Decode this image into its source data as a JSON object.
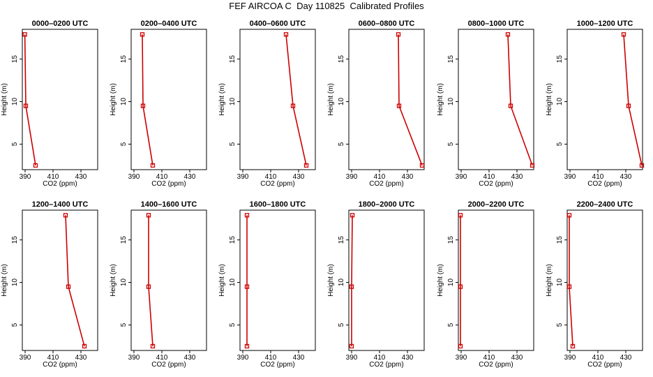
{
  "title": "FEF AIRCOA C  Day 110825  Calibrated Profiles",
  "chart_data": {
    "type": "line",
    "xlabel": "CO2 (ppm)",
    "ylabel": "Height (m)",
    "xlim": [
      388,
      442
    ],
    "ylim": [
      2,
      18.5
    ],
    "xticks": [
      "390",
      "410",
      "430"
    ],
    "yticks": [
      "5",
      "10",
      "15"
    ],
    "heights": [
      2.5,
      9.5,
      17.9
    ],
    "line_color": "#cc0000",
    "panels": [
      {
        "title": "0000–0200 UTC",
        "co2": [
          397.5,
          390.5,
          389.8
        ]
      },
      {
        "title": "0200–0400 UTC",
        "co2": [
          403.5,
          396.5,
          396.0
        ]
      },
      {
        "title": "0400–0600 UTC",
        "co2": [
          435.5,
          426.0,
          421.0
        ]
      },
      {
        "title": "0600–0800 UTC",
        "co2": [
          440.5,
          424.0,
          423.5
        ]
      },
      {
        "title": "0800–1000 UTC",
        "co2": [
          441.0,
          425.5,
          423.5
        ]
      },
      {
        "title": "1000–1200 UTC",
        "co2": [
          441.5,
          432.0,
          428.5
        ]
      },
      {
        "title": "1200–1400 UTC",
        "co2": [
          432.5,
          421.0,
          419.0
        ]
      },
      {
        "title": "1400–1600 UTC",
        "co2": [
          403.5,
          400.5,
          400.5
        ]
      },
      {
        "title": "1600–1800 UTC",
        "co2": [
          393.0,
          393.0,
          393.0
        ]
      },
      {
        "title": "1800–2000 UTC",
        "co2": [
          390.0,
          390.0,
          390.5
        ]
      },
      {
        "title": "2000–2200 UTC",
        "co2": [
          389.5,
          389.5,
          389.5
        ]
      },
      {
        "title": "2200–2400 UTC",
        "co2": [
          392.0,
          389.5,
          389.5
        ]
      }
    ]
  }
}
